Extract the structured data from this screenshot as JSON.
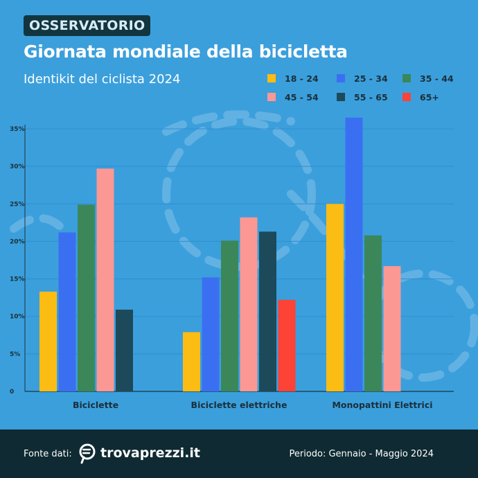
{
  "header": {
    "badge": "OSSERVATORIO",
    "title": "Giornata mondiale della bicicletta",
    "subtitle": "Identikit del ciclista 2024"
  },
  "footer": {
    "source_label": "Fonte dati:",
    "brand": "trovaprezzi.it",
    "period": "Periodo: Gennaio - Maggio 2024"
  },
  "colors": {
    "background": "#3b9fdc",
    "footer": "#0f2a32",
    "badge": "#12363f"
  },
  "chart_data": {
    "type": "bar",
    "title": "",
    "xlabel": "",
    "ylabel": "",
    "categories": [
      "Biciclette",
      "Biciclette elettriche",
      "Monopattini Elettrici"
    ],
    "ylim": [
      0,
      35
    ],
    "yticks": [
      "0",
      "5%",
      "10%",
      "15%",
      "20%",
      "25%",
      "30%",
      "35%"
    ],
    "grid": true,
    "legend_position": "top-right",
    "series": [
      {
        "name": "18 - 24",
        "color": "#fbbd13",
        "values": [
          13.3,
          7.9,
          25.0
        ]
      },
      {
        "name": "25 - 34",
        "color": "#3b6ff2",
        "values": [
          21.2,
          15.2,
          36.5
        ]
      },
      {
        "name": "35 - 44",
        "color": "#3b875a",
        "values": [
          24.9,
          20.1,
          20.8
        ]
      },
      {
        "name": "45 - 54",
        "color": "#fb9894",
        "values": [
          29.7,
          23.2,
          16.7
        ]
      },
      {
        "name": "55 - 65",
        "color": "#1c4a5a",
        "values": [
          10.9,
          21.3,
          null
        ]
      },
      {
        "name": "65+",
        "color": "#fd4236",
        "values": [
          null,
          12.2,
          null
        ]
      }
    ]
  }
}
